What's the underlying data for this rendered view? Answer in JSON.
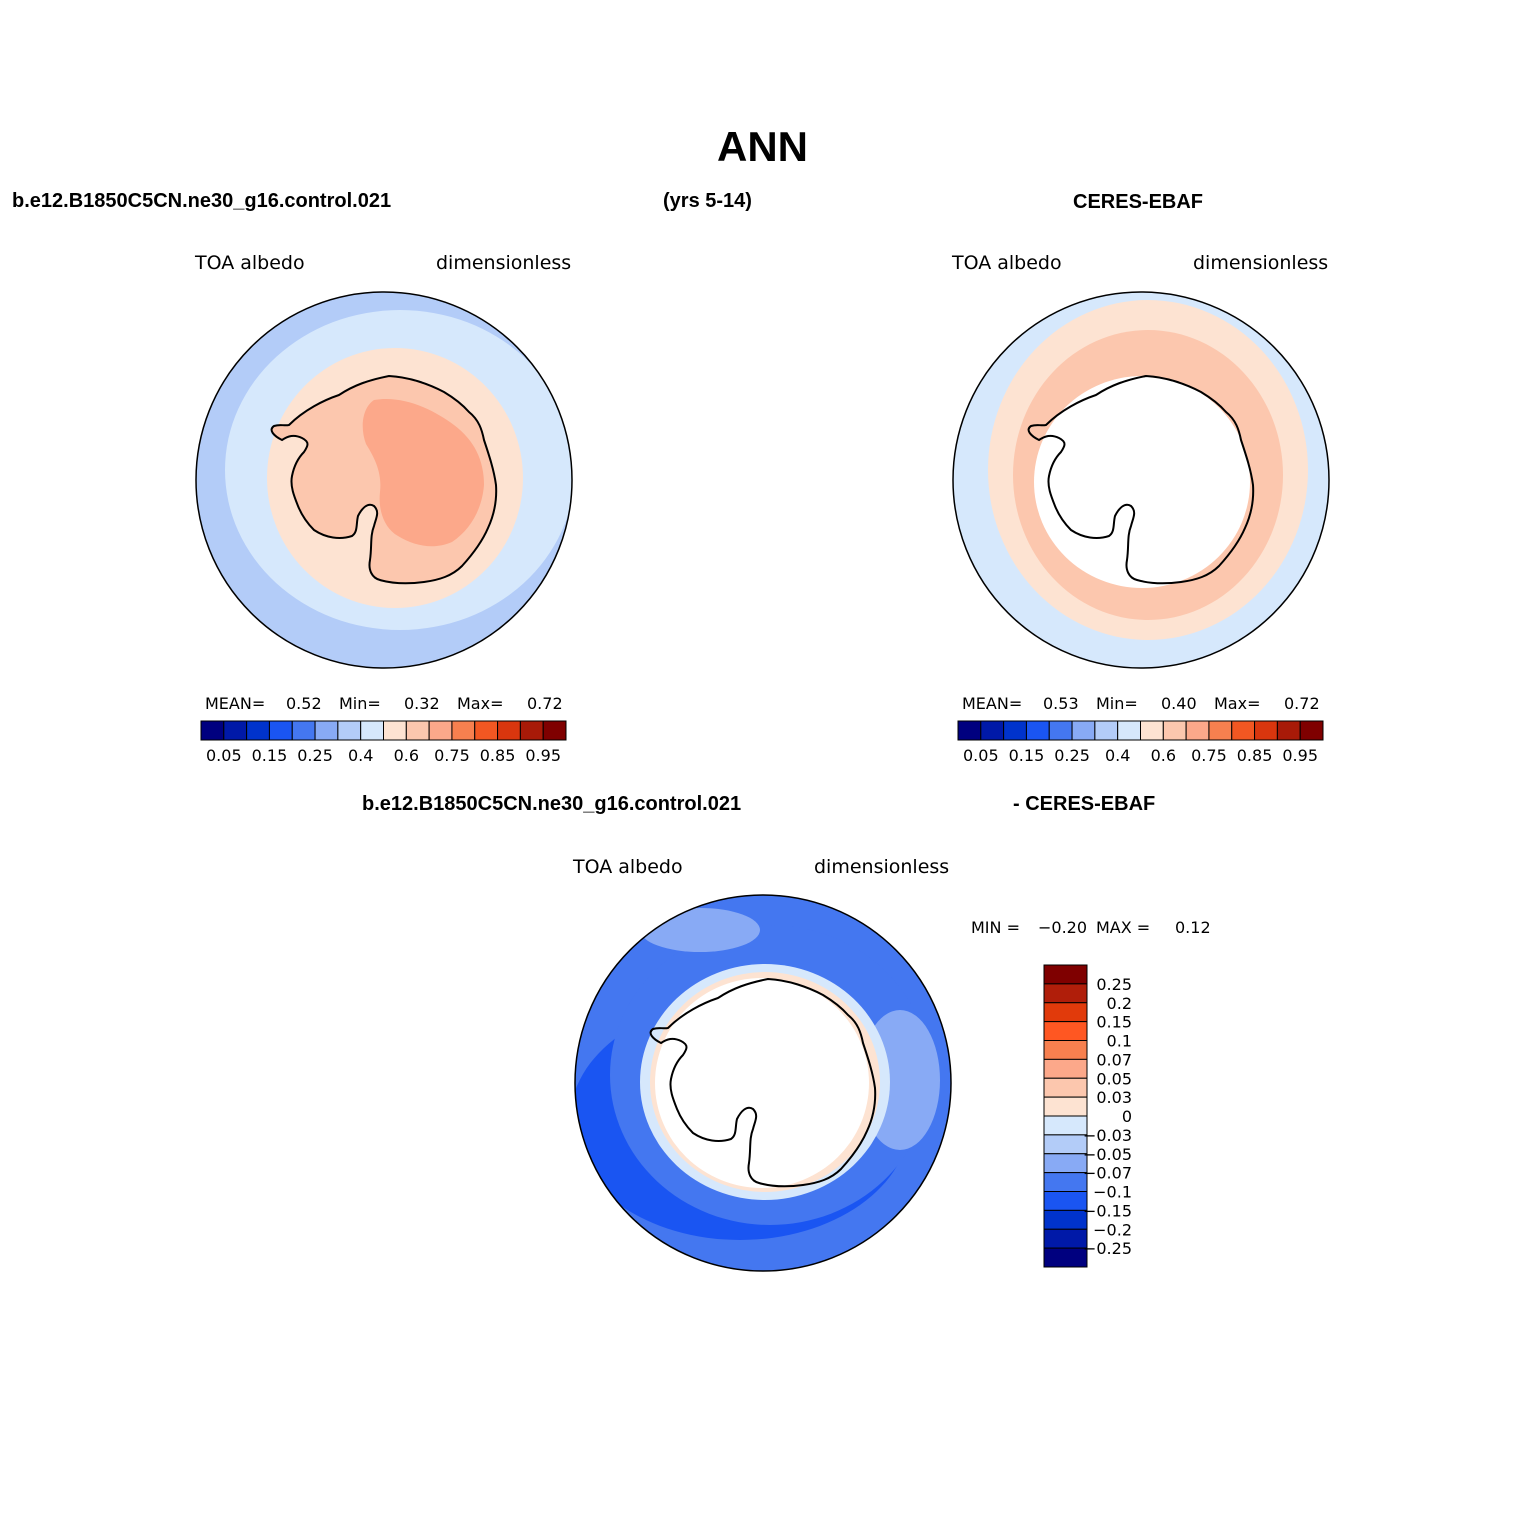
{
  "figure": {
    "title": "ANN",
    "header_left": "b.e12.B1850C5CN.ne30_g16.control.021",
    "header_mid": "(yrs 5-14)",
    "header_right": "CERES-EBAF",
    "diff_header_left": "b.e12.B1850C5CN.ne30_g16.control.021",
    "diff_header_right": "- CERES-EBAF"
  },
  "panels": {
    "model": {
      "variable": "TOA  albedo",
      "units": "dimensionless",
      "mean_label": "MEAN=",
      "mean": "0.52",
      "min_label": "Min=",
      "min": "0.32",
      "max_label": "Max=",
      "max": "0.72"
    },
    "obs": {
      "variable": "TOA  albedo",
      "units": "dimensionless",
      "mean_label": "MEAN=",
      "mean": "0.53",
      "min_label": "Min=",
      "min": "0.40",
      "max_label": "Max=",
      "max": "0.72"
    },
    "diff": {
      "variable": "TOA  albedo",
      "units": "dimensionless",
      "min_label": "MIN =",
      "min": "−0.20",
      "max_label": "MAX =",
      "max": "0.12"
    }
  },
  "colorbar_main": {
    "colors": [
      "#00007f",
      "#0019a8",
      "#0033cc",
      "#1a55f2",
      "#4477f0",
      "#88aaf5",
      "#b3ccf8",
      "#d6e8fc",
      "#fde3d2",
      "#fcc7ae",
      "#fca88a",
      "#f7804f",
      "#f25722",
      "#d9360e",
      "#a81a08",
      "#7f0000"
    ],
    "tick_labels": [
      "0.05",
      "0.15",
      "0.25",
      "0.4",
      "0.6",
      "0.75",
      "0.85",
      "0.95"
    ]
  },
  "colorbar_diff": {
    "colors_top_to_bottom": [
      "#7f0000",
      "#b01e0a",
      "#e13a0b",
      "#ff5722",
      "#f7804f",
      "#fca88a",
      "#fcc7ae",
      "#fde3d2",
      "#d6e8fc",
      "#b3ccf8",
      "#88aaf5",
      "#4477f0",
      "#1a55f2",
      "#0033cc",
      "#0019a8",
      "#00007f"
    ],
    "labels": [
      "0.25",
      "0.2",
      "0.15",
      "0.1",
      "0.07",
      "0.05",
      "0.03",
      "0",
      "−0.03",
      "−0.05",
      "−0.07",
      "−0.1",
      "−0.15",
      "−0.2",
      "−0.25"
    ]
  },
  "map_fill": {
    "model_outer": "#b3ccf8",
    "model_mid": "#d6e8fc",
    "model_inner": "#fde3d2",
    "model_land": "#fcc7ae",
    "model_land_high": "#fca88a",
    "obs_outer": "#d6e8fc",
    "obs_ring": "#fde3d2",
    "obs_ring_high": "#fcc7ae",
    "diff_outer": "#4477f0",
    "diff_dark": "#1a55f2",
    "diff_light": "#88aaf5",
    "diff_ring": "#d6e8fc",
    "diff_pos": "#fde3d2",
    "missing": "#ffffff"
  }
}
